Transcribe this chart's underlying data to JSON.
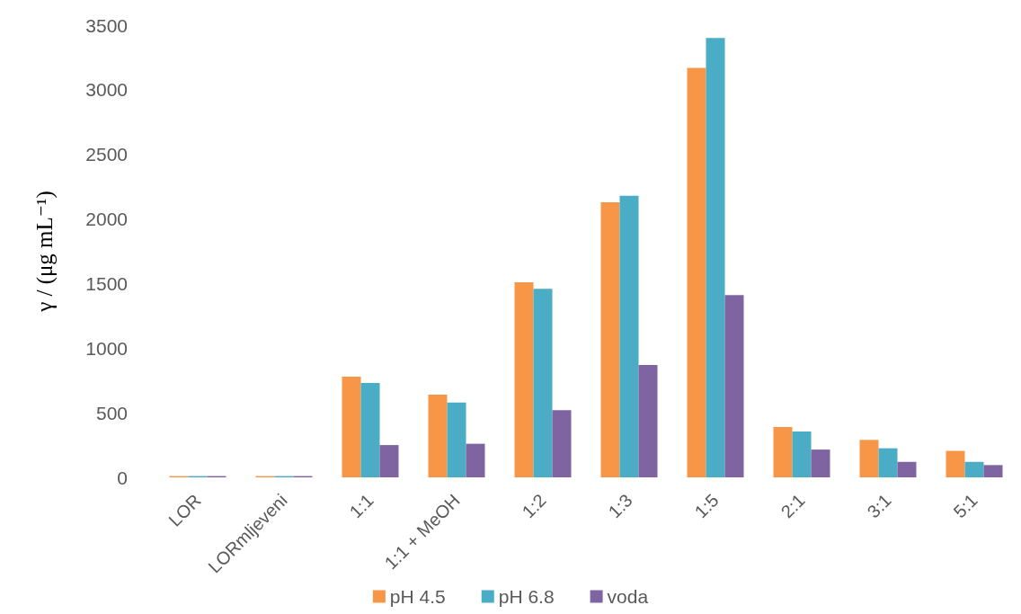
{
  "chart_data": {
    "type": "bar",
    "ylabel": "γ / (μg mL⁻¹)",
    "categories": [
      "LOR",
      "LORmljeveni",
      "1:1",
      "1:1 + MeOH",
      "1:2",
      "1:3",
      "1:5",
      "2:1",
      "3:1",
      "5:1"
    ],
    "series": [
      {
        "name": "pH 4.5",
        "color": "#f79646",
        "values": [
          10,
          10,
          780,
          640,
          1510,
          2130,
          3170,
          390,
          290,
          205
        ]
      },
      {
        "name": "pH 6.8",
        "color": "#4bacc6",
        "values": [
          10,
          10,
          730,
          580,
          1460,
          2180,
          3400,
          355,
          225,
          120
        ]
      },
      {
        "name": "voda",
        "color": "#8064a2",
        "values": [
          10,
          10,
          250,
          260,
          520,
          870,
          1410,
          215,
          120,
          95
        ]
      }
    ],
    "ylim": [
      0,
      3500
    ],
    "yticks": [
      0,
      500,
      1000,
      1500,
      2000,
      2500,
      3000,
      3500
    ],
    "grid": false,
    "legend": "bottom"
  }
}
